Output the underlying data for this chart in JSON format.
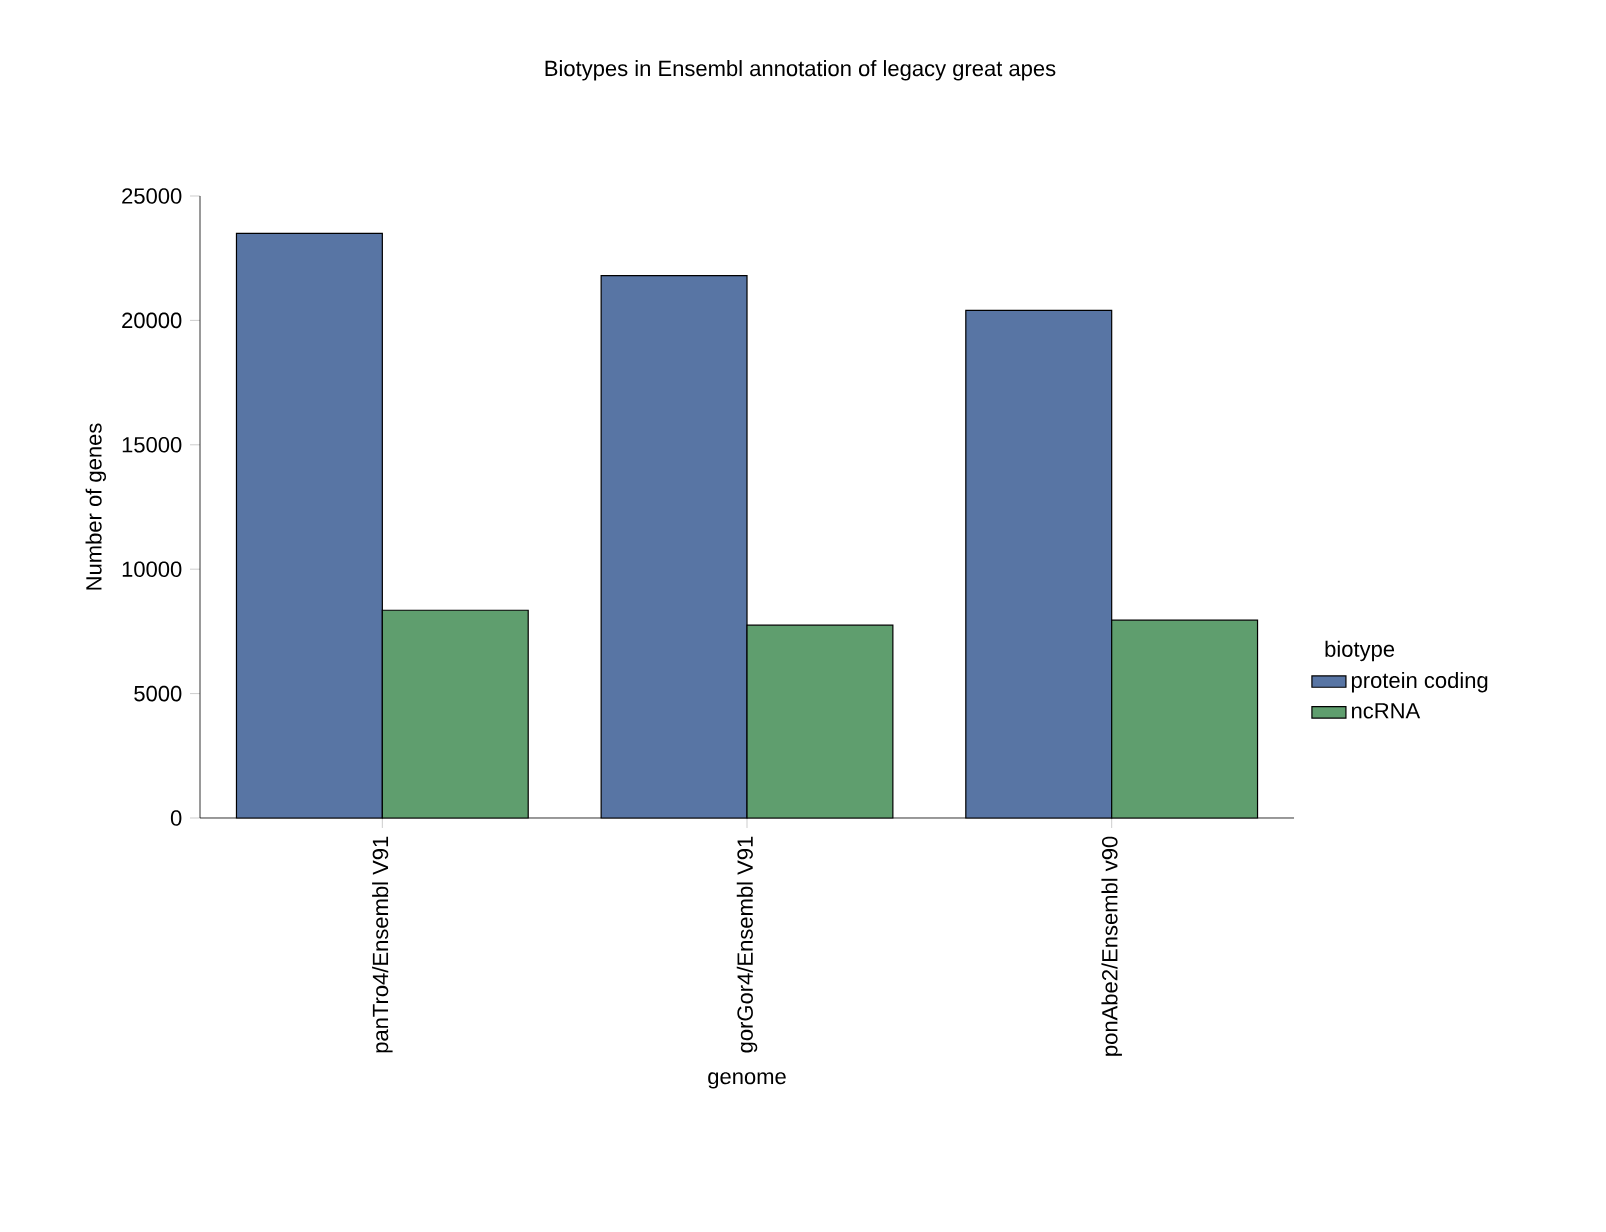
{
  "chart_data": {
    "type": "bar",
    "title": "Biotypes in Ensembl annotation of legacy great apes",
    "xlabel": "genome",
    "ylabel": "Number of genes",
    "legend_title": "biotype",
    "categories": [
      "panTro4/Ensembl V91",
      "gorGor4/Ensembl V91",
      "ponAbe2/Ensembl v90"
    ],
    "series": [
      {
        "name": "protein coding",
        "color": "#5875a4",
        "values": [
          23500,
          21800,
          20400
        ]
      },
      {
        "name": "ncRNA",
        "color": "#5f9e6e",
        "values": [
          8350,
          7750,
          7950
        ]
      }
    ],
    "ylim": [
      0,
      25000
    ],
    "yticks": [
      0,
      5000,
      10000,
      15000,
      20000,
      25000
    ],
    "legend": "right"
  }
}
